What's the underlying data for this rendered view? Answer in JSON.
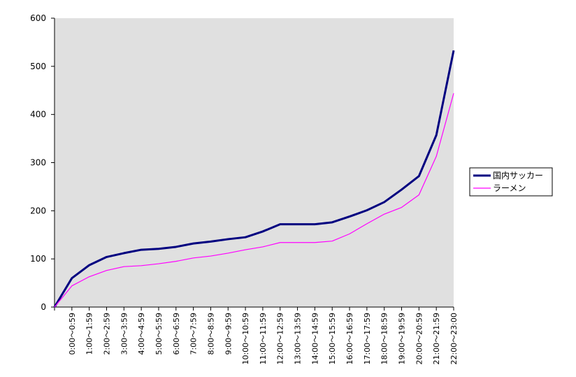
{
  "chart_data": {
    "type": "line",
    "categories": [
      null,
      "0:00～0:59",
      "1:00～1:59",
      "2:00～2:59",
      "3:00～3:59",
      "4:00～4:59",
      "5:00～5:59",
      "6:00～6:59",
      "7:00～7:59",
      "8:00～8:59",
      "9:00～9:59",
      "10:00～10:59",
      "11:00～11:59",
      "12:00～12:59",
      "13:00～13:59",
      "14:00～14:59",
      "15:00～15:59",
      "16:00～16:59",
      "17:00～17:59",
      "18:00～18:59",
      "19:00～19:59",
      "20:00～20:59",
      "21:00～21:59",
      "22:00～23:00"
    ],
    "series": [
      {
        "name": "国内サッカー",
        "color": "#000080",
        "values": [
          0,
          60,
          87,
          104,
          112,
          119,
          121,
          125,
          132,
          136,
          141,
          145,
          157,
          172,
          172,
          172,
          176,
          188,
          201,
          218,
          244,
          272,
          357,
          533
        ]
      },
      {
        "name": "ラーメン",
        "color": "#ff00ff",
        "values": [
          0,
          44,
          63,
          76,
          84,
          86,
          90,
          95,
          102,
          106,
          112,
          119,
          125,
          134,
          134,
          134,
          137,
          152,
          173,
          193,
          207,
          233,
          313,
          444
        ]
      }
    ],
    "ylim": [
      0,
      600
    ],
    "yticks": [
      0,
      100,
      200,
      300,
      400,
      500,
      600
    ],
    "grid": false,
    "legend": "right"
  }
}
